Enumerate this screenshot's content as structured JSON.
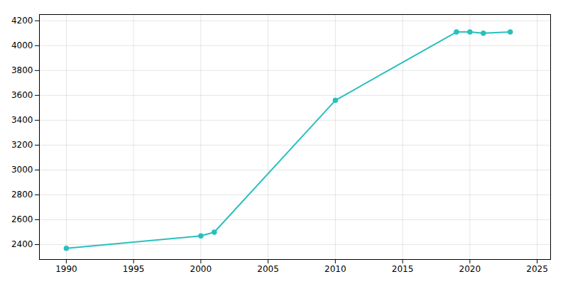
{
  "chart_data": {
    "type": "line",
    "x": [
      1990,
      2000,
      2001,
      2010,
      2019,
      2020,
      2021,
      2023
    ],
    "values": [
      2370,
      2470,
      2500,
      3560,
      4110,
      4110,
      4100,
      4110
    ],
    "color": "#29bfbf",
    "marker": "circle",
    "xlim": [
      1988,
      2026
    ],
    "ylim": [
      2280,
      4250
    ],
    "xticks": [
      1990,
      1995,
      2000,
      2005,
      2010,
      2015,
      2020,
      2025
    ],
    "yticks": [
      2400,
      2600,
      2800,
      3000,
      3200,
      3400,
      3600,
      3800,
      4000,
      4200
    ],
    "grid": true
  }
}
